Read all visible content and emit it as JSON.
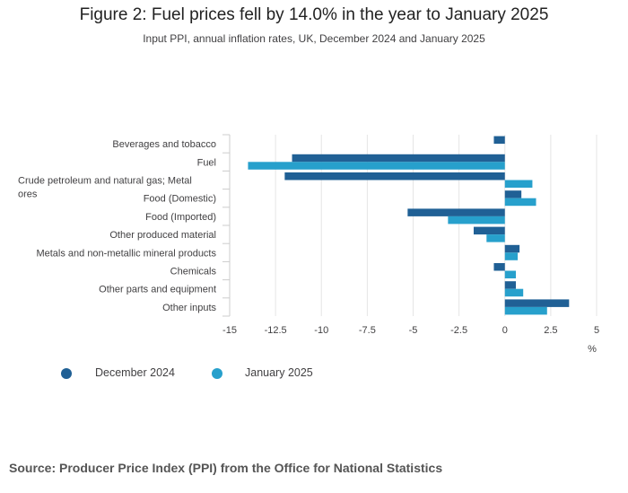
{
  "chart_data": {
    "type": "bar",
    "orientation": "horizontal",
    "title": "Figure 2: Fuel prices fell by 14.0% in the year to January 2025",
    "subtitle": "Input PPI, annual inflation rates, UK, December 2024 and January 2025",
    "categories": [
      "Beverages and tobacco",
      "Fuel",
      "Crude petroleum and natural gas; Metal ores",
      "Food (Domestic)",
      "Food (Imported)",
      "Other produced material",
      "Metals and non-metallic mineral products",
      "Chemicals",
      "Other parts and equipment",
      "Other inputs"
    ],
    "series": [
      {
        "name": "December 2024",
        "color": "#206095",
        "values": [
          -0.6,
          -11.6,
          -12.0,
          0.9,
          -5.3,
          -1.7,
          0.8,
          -0.6,
          0.6,
          3.5
        ]
      },
      {
        "name": "January 2025",
        "color": "#27a0cc",
        "values": [
          0,
          -14.0,
          1.5,
          1.7,
          -3.1,
          -1.0,
          0.7,
          0.6,
          1.0,
          2.3
        ]
      }
    ],
    "xticks": [
      "-15",
      "-12.5",
      "-10",
      "-7.5",
      "-5",
      "-2.5",
      "0",
      "2.5",
      "5"
    ],
    "xlim": [
      -15,
      5
    ],
    "xlabel": "%",
    "legend_position": "bottom-left"
  },
  "footer": {
    "source": "Source: Producer Price Index (PPI) from the Office for National Statistics"
  }
}
